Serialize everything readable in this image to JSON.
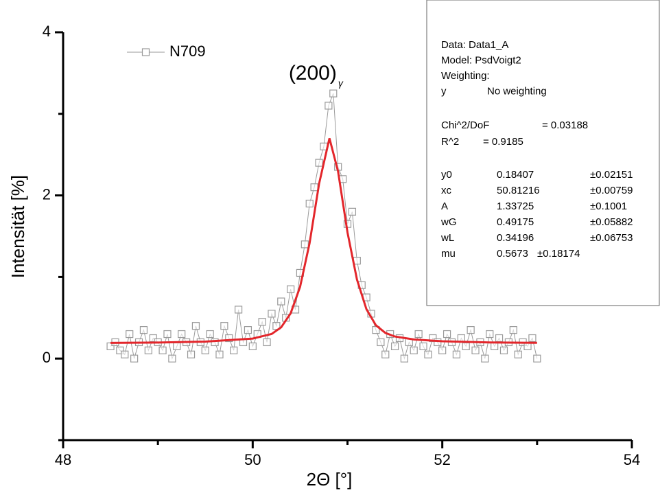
{
  "chart_data": {
    "type": "scatter",
    "xlabel": "2Θ [°]",
    "ylabel": "Intensität [%]",
    "xlim": [
      48,
      54
    ],
    "ylim": [
      -1,
      4
    ],
    "xticks": [
      48,
      50,
      52,
      54
    ],
    "yticks": [
      0,
      2,
      4
    ],
    "xminorticks": [
      49,
      51,
      53
    ],
    "yminorticks": [
      -1,
      1,
      3
    ],
    "legend": "top-left",
    "annotation": {
      "text": "(200)",
      "subscript": "γ",
      "x": 50.8,
      "y": 3.4
    },
    "series": [
      {
        "name": "N709",
        "color": "#9a9a9a",
        "mode": "line+markers",
        "x": [
          48.5,
          48.55,
          48.6,
          48.65,
          48.7,
          48.75,
          48.8,
          48.85,
          48.9,
          48.95,
          49.0,
          49.05,
          49.1,
          49.15,
          49.2,
          49.25,
          49.3,
          49.35,
          49.4,
          49.45,
          49.5,
          49.55,
          49.6,
          49.65,
          49.7,
          49.75,
          49.8,
          49.85,
          49.9,
          49.95,
          50.0,
          50.05,
          50.1,
          50.15,
          50.2,
          50.25,
          50.3,
          50.35,
          50.4,
          50.45,
          50.5,
          50.55,
          50.6,
          50.65,
          50.7,
          50.75,
          50.8,
          50.85,
          50.9,
          50.95,
          51.0,
          51.05,
          51.1,
          51.15,
          51.2,
          51.25,
          51.3,
          51.35,
          51.4,
          51.45,
          51.5,
          51.55,
          51.6,
          51.65,
          51.7,
          51.75,
          51.8,
          51.85,
          51.9,
          51.95,
          52.0,
          52.05,
          52.1,
          52.15,
          52.2,
          52.25,
          52.3,
          52.35,
          52.4,
          52.45,
          52.5,
          52.55,
          52.6,
          52.65,
          52.7,
          52.75,
          52.8,
          52.85,
          52.9,
          52.95,
          53.0
        ],
        "values": [
          0.15,
          0.2,
          0.1,
          0.05,
          0.3,
          0,
          0.2,
          0.35,
          0.1,
          0.25,
          0.2,
          0.1,
          0.3,
          0,
          0.15,
          0.3,
          0.2,
          0.05,
          0.4,
          0.2,
          0.1,
          0.3,
          0.2,
          0.05,
          0.4,
          0.25,
          0.1,
          0.6,
          0.2,
          0.35,
          0.15,
          0.3,
          0.45,
          0.2,
          0.55,
          0.4,
          0.7,
          0.5,
          0.85,
          0.6,
          1.05,
          1.4,
          1.9,
          2.1,
          2.4,
          2.6,
          3.1,
          3.25,
          2.35,
          2.2,
          1.65,
          1.8,
          1.2,
          0.9,
          0.75,
          0.55,
          0.35,
          0.2,
          0.05,
          0.3,
          0.15,
          0.25,
          0,
          0.2,
          0.1,
          0.3,
          0.15,
          0.05,
          0.25,
          0.2,
          0.1,
          0.3,
          0.2,
          0.05,
          0.25,
          0.15,
          0.35,
          0.1,
          0.2,
          0,
          0.3,
          0.15,
          0.25,
          0.1,
          0.2,
          0.35,
          0.05,
          0.2,
          0.15,
          0.25,
          0
        ]
      },
      {
        "color": "#e3262b",
        "mode": "line",
        "x": [
          48.5,
          49,
          49.5,
          50,
          50.2,
          50.3,
          50.4,
          50.5,
          50.6,
          50.7,
          50.81,
          50.9,
          51.0,
          51.1,
          51.2,
          51.3,
          51.4,
          51.5,
          51.7,
          52,
          52.5,
          53
        ],
        "values": [
          0.192,
          0.196,
          0.208,
          0.245,
          0.302,
          0.383,
          0.554,
          0.88,
          1.413,
          2.144,
          2.7,
          2.296,
          1.546,
          0.969,
          0.605,
          0.408,
          0.314,
          0.27,
          0.234,
          0.212,
          0.198,
          0.193
        ]
      }
    ],
    "fit_box": {
      "lines": [
        "Data: Data1_A",
        "Model: PsdVoigt2",
        "Weighting:"
      ],
      "weighting": [
        "y",
        "No weighting"
      ],
      "stats": [
        [
          "Chi^2/DoF",
          "= 0.03188"
        ],
        [
          "R^2",
          "= 0.9185"
        ]
      ],
      "params": [
        [
          "y0",
          "0.18407",
          "±0.02151"
        ],
        [
          "xc",
          "50.81216",
          "±0.00759"
        ],
        [
          "A",
          "1.33725",
          "±0.1001"
        ],
        [
          "wG",
          "0.49175",
          "±0.05882"
        ],
        [
          "wL",
          "0.34196",
          "±0.06753"
        ],
        [
          "mu",
          "0.5673",
          "±0.18174"
        ]
      ]
    }
  }
}
